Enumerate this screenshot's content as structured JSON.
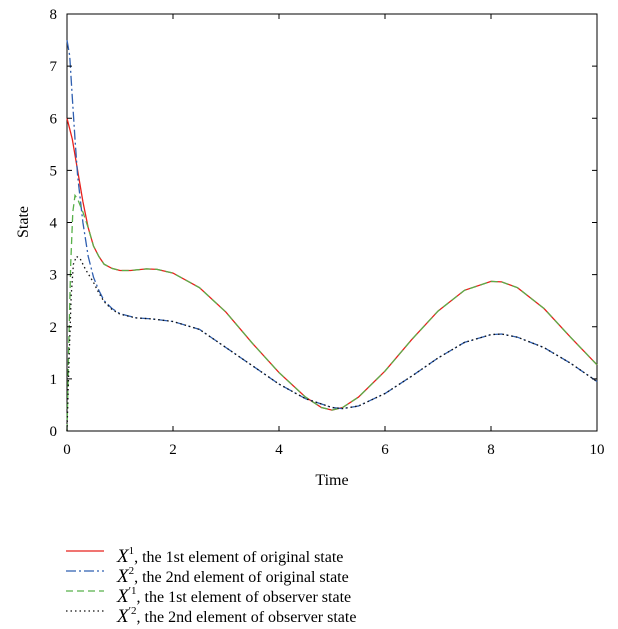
{
  "chart_data": {
    "type": "line",
    "xlabel": "Time",
    "ylabel": "State",
    "xlim": [
      0,
      10
    ],
    "ylim": [
      0,
      8
    ],
    "xticks": [
      "0",
      "2",
      "4",
      "6",
      "8",
      "10"
    ],
    "yticks": [
      "0",
      "1",
      "2",
      "3",
      "4",
      "5",
      "6",
      "7",
      "8"
    ],
    "grid": false,
    "legend_position": "below",
    "series": [
      {
        "color": "#e8211c",
        "dash": "solid",
        "legend": {
          "symbol": "X",
          "sup": "1",
          "text": ", the 1st element of original state"
        },
        "points": [
          [
            0,
            6.0
          ],
          [
            0.1,
            5.6
          ],
          [
            0.2,
            5.0
          ],
          [
            0.3,
            4.4
          ],
          [
            0.4,
            3.9
          ],
          [
            0.5,
            3.55
          ],
          [
            0.6,
            3.35
          ],
          [
            0.7,
            3.2
          ],
          [
            0.85,
            3.12
          ],
          [
            1.0,
            3.08
          ],
          [
            1.2,
            3.08
          ],
          [
            1.5,
            3.11
          ],
          [
            1.7,
            3.1
          ],
          [
            2.0,
            3.03
          ],
          [
            2.5,
            2.75
          ],
          [
            3.0,
            2.28
          ],
          [
            3.5,
            1.68
          ],
          [
            4.0,
            1.12
          ],
          [
            4.5,
            0.65
          ],
          [
            4.8,
            0.45
          ],
          [
            5.0,
            0.4
          ],
          [
            5.2,
            0.45
          ],
          [
            5.5,
            0.65
          ],
          [
            6.0,
            1.15
          ],
          [
            6.5,
            1.75
          ],
          [
            7.0,
            2.3
          ],
          [
            7.5,
            2.7
          ],
          [
            8.0,
            2.87
          ],
          [
            8.2,
            2.86
          ],
          [
            8.5,
            2.75
          ],
          [
            9.0,
            2.35
          ],
          [
            9.5,
            1.8
          ],
          [
            10.0,
            1.27
          ]
        ]
      },
      {
        "color": "#2f5fb0",
        "dash": "10,3,2,3",
        "legend": {
          "symbol": "X",
          "sup": "2",
          "text": ", the 2nd element of original state"
        },
        "points": [
          [
            0,
            7.5
          ],
          [
            0.05,
            7.2
          ],
          [
            0.1,
            6.4
          ],
          [
            0.15,
            5.6
          ],
          [
            0.2,
            4.9
          ],
          [
            0.3,
            4.0
          ],
          [
            0.4,
            3.35
          ],
          [
            0.5,
            2.95
          ],
          [
            0.6,
            2.7
          ],
          [
            0.7,
            2.5
          ],
          [
            0.85,
            2.35
          ],
          [
            1.0,
            2.25
          ],
          [
            1.3,
            2.17
          ],
          [
            1.6,
            2.15
          ],
          [
            2.0,
            2.1
          ],
          [
            2.5,
            1.95
          ],
          [
            3.0,
            1.6
          ],
          [
            3.5,
            1.25
          ],
          [
            4.0,
            0.9
          ],
          [
            4.5,
            0.62
          ],
          [
            5.0,
            0.45
          ],
          [
            5.2,
            0.43
          ],
          [
            5.5,
            0.48
          ],
          [
            6.0,
            0.72
          ],
          [
            6.5,
            1.05
          ],
          [
            7.0,
            1.4
          ],
          [
            7.5,
            1.7
          ],
          [
            8.0,
            1.85
          ],
          [
            8.2,
            1.86
          ],
          [
            8.5,
            1.8
          ],
          [
            9.0,
            1.6
          ],
          [
            9.5,
            1.3
          ],
          [
            10.0,
            0.95
          ]
        ]
      },
      {
        "color": "#58b04a",
        "dash": "7,4",
        "legend": {
          "symbol": "X",
          "sup": "′1",
          "text": ", the 1st element of observer state"
        },
        "points": [
          [
            0,
            0
          ],
          [
            0.03,
            1.5
          ],
          [
            0.07,
            3.2
          ],
          [
            0.11,
            4.2
          ],
          [
            0.15,
            4.52
          ],
          [
            0.2,
            4.45
          ],
          [
            0.3,
            4.2
          ],
          [
            0.4,
            3.9
          ],
          [
            0.5,
            3.55
          ],
          [
            0.6,
            3.35
          ],
          [
            0.7,
            3.2
          ],
          [
            0.85,
            3.12
          ],
          [
            1.0,
            3.08
          ],
          [
            1.2,
            3.08
          ],
          [
            1.5,
            3.11
          ],
          [
            1.7,
            3.1
          ],
          [
            2.0,
            3.03
          ],
          [
            2.5,
            2.75
          ],
          [
            3.0,
            2.28
          ],
          [
            3.5,
            1.68
          ],
          [
            4.0,
            1.12
          ],
          [
            4.5,
            0.65
          ],
          [
            4.8,
            0.45
          ],
          [
            5.0,
            0.4
          ],
          [
            5.2,
            0.45
          ],
          [
            5.5,
            0.65
          ],
          [
            6.0,
            1.15
          ],
          [
            6.5,
            1.75
          ],
          [
            7.0,
            2.3
          ],
          [
            7.5,
            2.7
          ],
          [
            8.0,
            2.87
          ],
          [
            8.2,
            2.86
          ],
          [
            8.5,
            2.75
          ],
          [
            9.0,
            2.35
          ],
          [
            9.5,
            1.8
          ],
          [
            10.0,
            1.27
          ]
        ]
      },
      {
        "color": "#111111",
        "dash": "1.5,3",
        "legend": {
          "symbol": "X",
          "sup": "′2",
          "text": ", the 2nd element of observer state"
        },
        "points": [
          [
            0,
            0
          ],
          [
            0.04,
            1.4
          ],
          [
            0.08,
            2.6
          ],
          [
            0.12,
            3.2
          ],
          [
            0.18,
            3.35
          ],
          [
            0.25,
            3.3
          ],
          [
            0.35,
            3.1
          ],
          [
            0.5,
            2.85
          ],
          [
            0.6,
            2.65
          ],
          [
            0.7,
            2.48
          ],
          [
            0.85,
            2.33
          ],
          [
            1.0,
            2.24
          ],
          [
            1.3,
            2.17
          ],
          [
            1.6,
            2.15
          ],
          [
            2.0,
            2.1
          ],
          [
            2.5,
            1.95
          ],
          [
            3.0,
            1.6
          ],
          [
            3.5,
            1.25
          ],
          [
            4.0,
            0.9
          ],
          [
            4.5,
            0.62
          ],
          [
            5.0,
            0.45
          ],
          [
            5.2,
            0.43
          ],
          [
            5.5,
            0.48
          ],
          [
            6.0,
            0.72
          ],
          [
            6.5,
            1.05
          ],
          [
            7.0,
            1.4
          ],
          [
            7.5,
            1.7
          ],
          [
            8.0,
            1.85
          ],
          [
            8.2,
            1.86
          ],
          [
            8.5,
            1.8
          ],
          [
            9.0,
            1.6
          ],
          [
            9.5,
            1.3
          ],
          [
            10.0,
            0.95
          ]
        ]
      }
    ]
  }
}
